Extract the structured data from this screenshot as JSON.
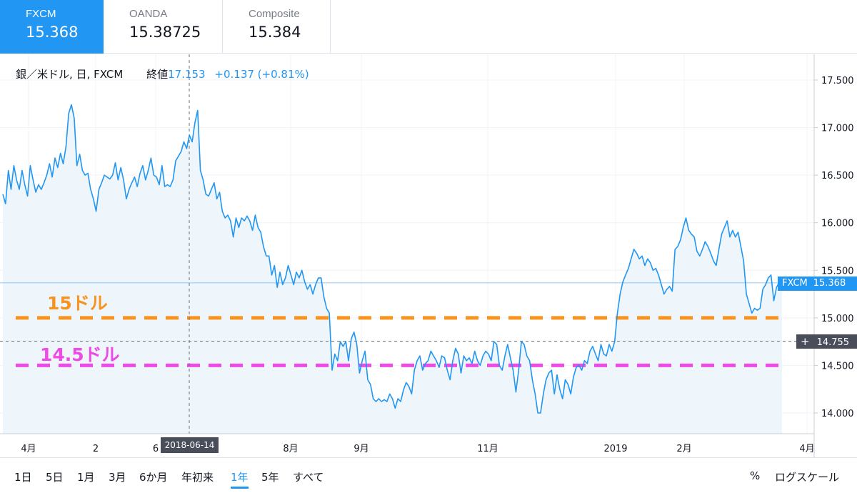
{
  "tabs": [
    {
      "name": "FXCM",
      "value": "15.368",
      "active": true
    },
    {
      "name": "OANDA",
      "value": "15.38725",
      "active": false
    },
    {
      "name": "Composite",
      "value": "15.384",
      "active": false
    }
  ],
  "legend": {
    "symbol": "銀／米ドル, 日, FXCM",
    "close_label": "終値",
    "close_value": "17.153",
    "change": "+0.137 (+0.81%)"
  },
  "horizontal_lines": [
    {
      "label": "15ドル",
      "value": 15.0,
      "color": "#f7931e"
    },
    {
      "label": "14.5ドル",
      "value": 14.5,
      "color": "#ee4be6"
    }
  ],
  "last_price_badge": {
    "symbol": "FXCM",
    "value": "15.368"
  },
  "crosshair": {
    "price_label": "14.755",
    "date_label": "2018-06-14",
    "price": 14.755
  },
  "chart_data": {
    "type": "line",
    "series": [
      {
        "name": "FXCM",
        "color": "#2196f3",
        "values": [
          16.3,
          16.2,
          16.55,
          16.35,
          16.6,
          16.45,
          16.35,
          16.55,
          16.4,
          16.28,
          16.6,
          16.45,
          16.32,
          16.4,
          16.35,
          16.42,
          16.5,
          16.62,
          16.48,
          16.68,
          16.58,
          16.73,
          16.62,
          16.8,
          17.15,
          17.24,
          17.1,
          16.6,
          16.72,
          16.55,
          16.5,
          16.52,
          16.35,
          16.25,
          16.12,
          16.35,
          16.42,
          16.5,
          16.48,
          16.46,
          16.5,
          16.63,
          16.45,
          16.58,
          16.45,
          16.25,
          16.35,
          16.42,
          16.48,
          16.38,
          16.52,
          16.6,
          16.45,
          16.55,
          16.68,
          16.5,
          16.48,
          16.4,
          16.6,
          16.38,
          16.4,
          16.38,
          16.45,
          16.65,
          16.7,
          16.75,
          16.85,
          16.78,
          16.92,
          16.85,
          17.05,
          17.18,
          16.55,
          16.45,
          16.3,
          16.28,
          16.35,
          16.42,
          16.25,
          16.32,
          16.12,
          16.05,
          16.08,
          16.02,
          15.85,
          16.05,
          15.95,
          16.05,
          16.02,
          16.07,
          16.02,
          15.92,
          16.08,
          15.95,
          15.9,
          15.75,
          15.65,
          15.65,
          15.45,
          15.55,
          15.32,
          15.48,
          15.35,
          15.42,
          15.55,
          15.45,
          15.35,
          15.48,
          15.42,
          15.5,
          15.38,
          15.3,
          15.35,
          15.25,
          15.35,
          15.42,
          15.42,
          15.22,
          15.1,
          15.05,
          14.45,
          14.62,
          14.55,
          14.75,
          14.7,
          14.75,
          14.55,
          14.78,
          14.85,
          14.72,
          14.42,
          14.55,
          14.65,
          14.35,
          14.3,
          14.15,
          14.12,
          14.15,
          14.12,
          14.14,
          14.12,
          14.2,
          14.15,
          14.05,
          14.15,
          14.12,
          14.24,
          14.32,
          14.28,
          14.2,
          14.45,
          14.55,
          14.6,
          14.45,
          14.52,
          14.55,
          14.65,
          14.6,
          14.55,
          14.48,
          14.6,
          14.58,
          14.45,
          14.35,
          14.55,
          14.68,
          14.62,
          14.42,
          14.6,
          14.55,
          14.58,
          14.52,
          14.65,
          14.55,
          14.5,
          14.6,
          14.65,
          14.62,
          14.55,
          14.75,
          14.72,
          14.5,
          14.45,
          14.6,
          14.72,
          14.58,
          14.45,
          14.22,
          14.45,
          14.75,
          14.72,
          14.6,
          14.55,
          14.35,
          14.2,
          14.0,
          14.0,
          14.2,
          14.35,
          14.42,
          14.45,
          14.2,
          14.4,
          14.25,
          14.15,
          14.35,
          14.3,
          14.2,
          14.38,
          14.48,
          14.5,
          14.45,
          14.55,
          14.52,
          14.65,
          14.7,
          14.62,
          14.55,
          14.72,
          14.62,
          14.6,
          14.72,
          14.65,
          14.75,
          15.05,
          15.25,
          15.38,
          15.45,
          15.52,
          15.62,
          15.72,
          15.68,
          15.62,
          15.65,
          15.55,
          15.62,
          15.58,
          15.5,
          15.52,
          15.45,
          15.35,
          15.25,
          15.3,
          15.33,
          15.28,
          15.72,
          15.75,
          15.82,
          15.95,
          16.05,
          15.92,
          15.88,
          15.85,
          15.7,
          15.65,
          15.72,
          15.8,
          15.75,
          15.68,
          15.6,
          15.55,
          15.72,
          15.88,
          15.95,
          16.02,
          15.85,
          15.92,
          15.85,
          15.9,
          15.75,
          15.6,
          15.25,
          15.15,
          15.05,
          15.1,
          15.08,
          15.1,
          15.3,
          15.35,
          15.42,
          15.45,
          15.18,
          15.32,
          15.38,
          15.37
        ]
      }
    ],
    "x_ticks": [
      "4月",
      "2",
      "6",
      "8月",
      "9月",
      "11月",
      "2019",
      "2月",
      "4月"
    ],
    "y_ticks": [
      "14.000",
      "14.500",
      "15.000",
      "15.500",
      "16.000",
      "16.500",
      "17.000",
      "17.500"
    ],
    "ylim": [
      13.8,
      17.6
    ],
    "grid": true
  },
  "timeframes": [
    "1日",
    "5日",
    "1月",
    "3月",
    "6か月",
    "年初来",
    "1年",
    "5年",
    "すべて"
  ],
  "active_timeframe": "1年",
  "toolbar_right": {
    "percent": "%",
    "log_scale": "ログスケール"
  },
  "colors": {
    "accent": "#2196f3",
    "area_fill": "#eef6fc"
  }
}
